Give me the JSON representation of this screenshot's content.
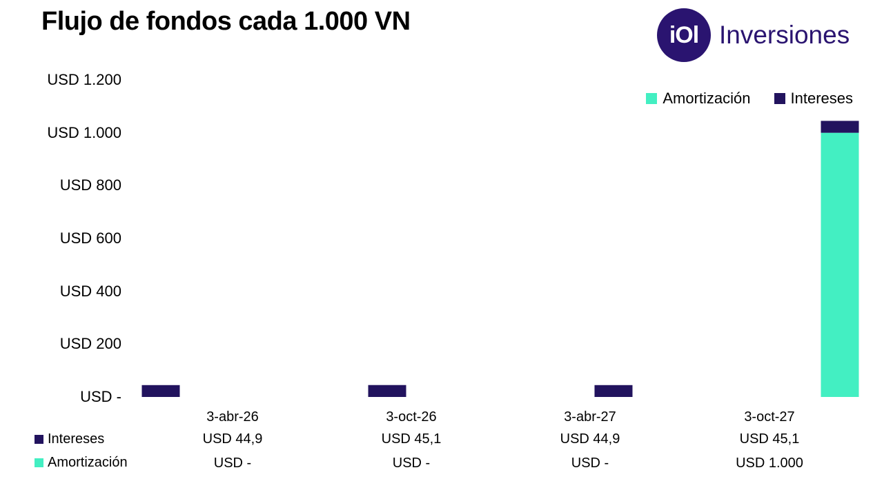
{
  "title": "Flujo de fondos cada 1.000 VN",
  "logo": {
    "mark": "iOl",
    "text": "Inversiones",
    "brand_color": "#2a1470"
  },
  "colors": {
    "intereses": "#22135e",
    "amortizacion": "#43efc2"
  },
  "chart_data": {
    "type": "bar",
    "stacked": true,
    "categories": [
      "3-abr-26",
      "3-oct-26",
      "3-abr-27",
      "3-oct-27"
    ],
    "series": [
      {
        "name": "Amortización",
        "values": [
          0,
          0,
          0,
          1000
        ],
        "labels": [
          "USD -",
          "USD -",
          "USD -",
          "USD 1.000"
        ]
      },
      {
        "name": "Intereses",
        "values": [
          44.9,
          45.1,
          44.9,
          45.1
        ],
        "labels": [
          "USD 44,9",
          "USD 45,1",
          "USD 44,9",
          "USD 45,1"
        ]
      }
    ],
    "ylim": [
      0,
      1200
    ],
    "yticks": [
      0,
      200,
      400,
      600,
      800,
      1000,
      1200
    ],
    "ytick_labels": [
      "USD -",
      "USD 200",
      "USD 400",
      "USD 600",
      "USD 800",
      "USD 1.000",
      "USD 1.200"
    ],
    "legend_position": "top-right",
    "grid": false,
    "data_table": true
  }
}
